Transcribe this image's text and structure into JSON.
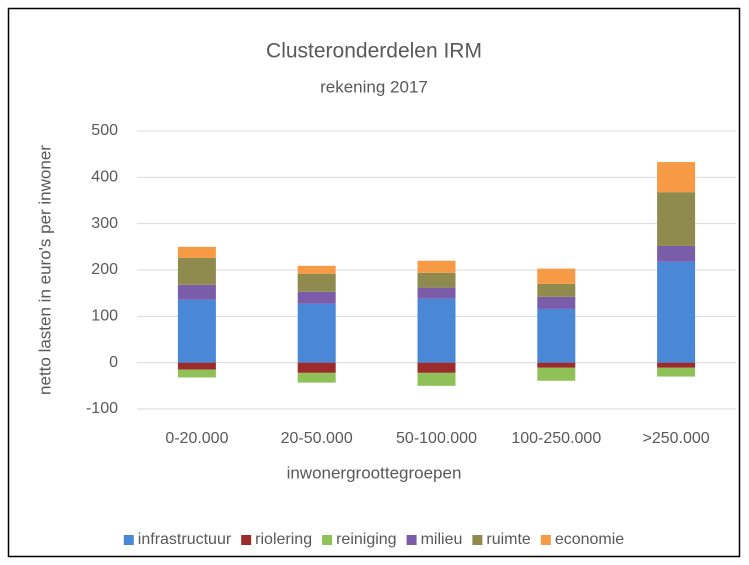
{
  "chart_data": {
    "type": "bar",
    "stacked": true,
    "title": "Clusteronderdelen IRM",
    "subtitle": "rekening 2017",
    "x_label": "inwonergroottegroepen",
    "y_label": "netto lasten in euro's per inwoner",
    "categories": [
      "0-20.000",
      "20-50.000",
      "50-100.000",
      "100-250.000",
      ">250.000"
    ],
    "series": [
      {
        "name": "infrastructuur",
        "color": "#4a87d6",
        "values": [
          136,
          127,
          138,
          116,
          218
        ]
      },
      {
        "name": "riolering",
        "color": "#9c2b2b",
        "values": [
          -15,
          -22,
          -22,
          -11,
          -11
        ]
      },
      {
        "name": "reiniging",
        "color": "#8fc158",
        "values": [
          -17,
          -21,
          -28,
          -28,
          -19
        ]
      },
      {
        "name": "milieu",
        "color": "#7b5ca8",
        "values": [
          32,
          26,
          24,
          26,
          34
        ]
      },
      {
        "name": "ruimte",
        "color": "#8f8a4e",
        "values": [
          58,
          39,
          32,
          28,
          116
        ]
      },
      {
        "name": "economie",
        "color": "#f79a46",
        "values": [
          24,
          17,
          26,
          33,
          65
        ]
      }
    ],
    "ylim": [
      -100,
      500
    ],
    "yticks": [
      -100,
      0,
      100,
      200,
      300,
      400,
      500
    ],
    "grid": true
  }
}
